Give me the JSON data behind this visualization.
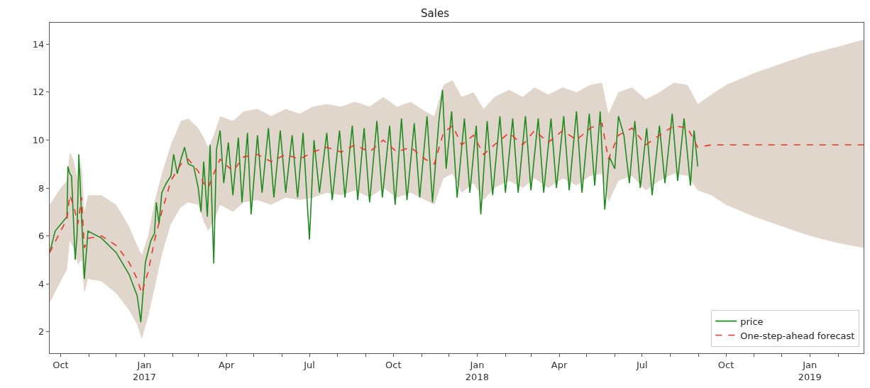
{
  "chart_data": {
    "type": "line",
    "title": "Sales",
    "xlim": [
      "2016-09-19",
      "2019-03-01"
    ],
    "ylim": [
      1.1,
      14.9
    ],
    "yticks": [
      2,
      4,
      6,
      8,
      10,
      12,
      14
    ],
    "xticks": [
      {
        "value": "2016-10-01",
        "label": "Oct"
      },
      {
        "value": "2016-11-01",
        "label": null
      },
      {
        "value": "2016-12-01",
        "label": null
      },
      {
        "value": "2017-01-01",
        "label": "Jan\n2017"
      },
      {
        "value": "2017-02-01",
        "label": null
      },
      {
        "value": "2017-03-01",
        "label": null
      },
      {
        "value": "2017-04-01",
        "label": "Apr"
      },
      {
        "value": "2017-05-01",
        "label": null
      },
      {
        "value": "2017-06-01",
        "label": null
      },
      {
        "value": "2017-07-01",
        "label": "Jul"
      },
      {
        "value": "2017-08-01",
        "label": null
      },
      {
        "value": "2017-09-01",
        "label": null
      },
      {
        "value": "2017-10-01",
        "label": "Oct"
      },
      {
        "value": "2017-11-01",
        "label": null
      },
      {
        "value": "2017-12-01",
        "label": null
      },
      {
        "value": "2018-01-01",
        "label": "Jan\n2018"
      },
      {
        "value": "2018-02-01",
        "label": null
      },
      {
        "value": "2018-03-01",
        "label": null
      },
      {
        "value": "2018-04-01",
        "label": "Apr"
      },
      {
        "value": "2018-05-01",
        "label": null
      },
      {
        "value": "2018-06-01",
        "label": null
      },
      {
        "value": "2018-07-01",
        "label": "Jul"
      },
      {
        "value": "2018-08-01",
        "label": null
      },
      {
        "value": "2018-09-01",
        "label": null
      },
      {
        "value": "2018-10-01",
        "label": "Oct"
      },
      {
        "value": "2018-11-01",
        "label": null
      },
      {
        "value": "2018-12-01",
        "label": null
      },
      {
        "value": "2019-01-01",
        "label": "Jan\n2019"
      },
      {
        "value": "2019-02-01",
        "label": null
      }
    ],
    "legend": "bottom right",
    "marker": "none",
    "series": [
      {
        "name": "price",
        "color": "#1f8a1f",
        "line_style": "solid",
        "x": [
          "2016-09-19",
          "2016-09-25",
          "2016-10-08",
          "2016-10-09",
          "2016-10-11",
          "2016-10-13",
          "2016-10-17",
          "2016-10-19",
          "2016-10-21",
          "2016-10-27",
          "2016-10-31",
          "2016-11-15",
          "2016-12-01",
          "2016-12-15",
          "2016-12-24",
          "2016-12-28",
          "2017-01-02",
          "2017-01-08",
          "2017-01-12",
          "2017-01-14",
          "2017-01-17",
          "2017-01-20",
          "2017-01-25",
          "2017-01-30",
          "2017-02-02",
          "2017-02-06",
          "2017-02-10",
          "2017-02-14",
          "2017-02-18",
          "2017-02-24",
          "2017-03-01",
          "2017-03-04",
          "2017-03-07",
          "2017-03-11",
          "2017-03-14",
          "2017-03-18",
          "2017-03-21",
          "2017-03-25",
          "2017-03-29",
          "2017-04-03",
          "2017-04-08",
          "2017-04-14",
          "2017-04-18",
          "2017-04-24",
          "2017-04-28",
          "2017-05-05",
          "2017-05-10",
          "2017-05-17",
          "2017-05-23",
          "2017-05-30",
          "2017-06-05",
          "2017-06-12",
          "2017-06-18",
          "2017-06-24",
          "2017-07-01",
          "2017-07-06",
          "2017-07-12",
          "2017-07-20",
          "2017-07-26",
          "2017-08-03",
          "2017-08-09",
          "2017-08-17",
          "2017-08-23",
          "2017-08-30",
          "2017-09-05",
          "2017-09-13",
          "2017-09-19",
          "2017-09-27",
          "2017-10-03",
          "2017-10-10",
          "2017-10-16",
          "2017-10-24",
          "2017-10-30",
          "2017-11-07",
          "2017-11-13",
          "2017-11-20",
          "2017-11-24",
          "2017-11-28",
          "2017-12-04",
          "2017-12-10",
          "2017-12-18",
          "2017-12-24",
          "2017-12-31",
          "2018-01-05",
          "2018-01-12",
          "2018-01-18",
          "2018-01-26",
          "2018-02-01",
          "2018-02-09",
          "2018-02-15",
          "2018-02-23",
          "2018-03-01",
          "2018-03-09",
          "2018-03-15",
          "2018-03-23",
          "2018-03-29",
          "2018-04-06",
          "2018-04-12",
          "2018-04-20",
          "2018-04-26",
          "2018-05-04",
          "2018-05-10",
          "2018-05-16",
          "2018-05-21",
          "2018-05-26",
          "2018-06-01",
          "2018-06-05",
          "2018-06-11",
          "2018-06-17",
          "2018-06-23",
          "2018-06-29",
          "2018-07-06",
          "2018-07-12",
          "2018-07-20",
          "2018-07-26",
          "2018-08-03",
          "2018-08-09",
          "2018-08-16",
          "2018-08-23",
          "2018-08-27",
          "2018-08-31"
        ],
        "values": [
          5.3,
          6.2,
          6.8,
          8.9,
          8.6,
          8.5,
          5.0,
          6.0,
          9.4,
          4.2,
          6.2,
          5.9,
          5.3,
          4.4,
          3.5,
          2.4,
          4.9,
          5.8,
          6.1,
          7.4,
          6.5,
          7.8,
          8.2,
          8.5,
          9.4,
          8.6,
          9.2,
          9.7,
          9.0,
          8.9,
          8.0,
          7.0,
          9.1,
          6.8,
          9.8,
          4.85,
          9.6,
          10.4,
          8.2,
          9.9,
          7.7,
          10.1,
          7.4,
          10.3,
          6.9,
          10.2,
          7.8,
          10.5,
          7.6,
          10.4,
          7.8,
          10.2,
          7.6,
          10.3,
          5.85,
          10.0,
          7.8,
          10.3,
          7.5,
          10.4,
          7.6,
          10.6,
          7.5,
          10.5,
          7.4,
          10.8,
          7.6,
          10.6,
          7.3,
          10.9,
          7.5,
          10.7,
          7.6,
          11.0,
          7.4,
          10.8,
          12.1,
          8.8,
          11.2,
          7.6,
          10.9,
          7.8,
          10.6,
          6.9,
          10.8,
          7.7,
          11.0,
          7.8,
          10.9,
          7.8,
          11.0,
          7.9,
          10.9,
          7.8,
          10.9,
          8.0,
          11.0,
          7.9,
          11.2,
          7.8,
          11.1,
          8.1,
          11.2,
          7.1,
          9.3,
          8.8,
          11.0,
          10.2,
          8.2,
          10.8,
          8.0,
          10.5,
          7.7,
          10.6,
          8.2,
          11.1,
          8.3,
          10.9,
          8.1,
          10.4,
          8.9
        ]
      },
      {
        "name": "One-step-ahead forecast",
        "color": "#e8352b",
        "line_style": "dashed",
        "x": [
          "2016-09-19",
          "2016-10-01",
          "2016-10-08",
          "2016-10-11",
          "2016-10-15",
          "2016-10-20",
          "2016-10-24",
          "2016-10-27",
          "2016-10-31",
          "2016-11-15",
          "2016-12-01",
          "2016-12-15",
          "2016-12-24",
          "2016-12-29",
          "2017-01-05",
          "2017-01-12",
          "2017-01-20",
          "2017-01-30",
          "2017-02-10",
          "2017-02-18",
          "2017-03-01",
          "2017-03-07",
          "2017-03-12",
          "2017-03-18",
          "2017-03-25",
          "2017-04-08",
          "2017-04-20",
          "2017-05-05",
          "2017-05-20",
          "2017-06-05",
          "2017-06-20",
          "2017-07-05",
          "2017-07-20",
          "2017-08-05",
          "2017-08-20",
          "2017-09-05",
          "2017-09-20",
          "2017-10-05",
          "2017-10-20",
          "2017-11-05",
          "2017-11-15",
          "2017-11-25",
          "2017-12-05",
          "2017-12-15",
          "2017-12-28",
          "2018-01-08",
          "2018-01-20",
          "2018-02-05",
          "2018-02-20",
          "2018-03-05",
          "2018-03-20",
          "2018-04-05",
          "2018-04-20",
          "2018-05-05",
          "2018-05-18",
          "2018-05-25",
          "2018-06-05",
          "2018-06-20",
          "2018-07-05",
          "2018-07-20",
          "2018-08-05",
          "2018-08-20",
          "2018-08-31",
          "2018-09-15",
          "2018-10-01",
          "2018-11-01",
          "2018-12-01",
          "2019-01-01",
          "2019-02-01",
          "2019-03-01"
        ],
        "values": [
          5.3,
          6.2,
          6.7,
          7.7,
          7.3,
          6.5,
          7.6,
          5.5,
          5.9,
          6.0,
          5.6,
          4.9,
          4.2,
          3.6,
          4.5,
          5.8,
          7.0,
          8.3,
          9.0,
          9.2,
          8.7,
          8.2,
          8.0,
          8.6,
          9.2,
          8.7,
          9.3,
          9.4,
          9.1,
          9.4,
          9.2,
          9.5,
          9.7,
          9.5,
          9.8,
          9.5,
          10.0,
          9.5,
          9.7,
          9.2,
          9.0,
          10.3,
          10.6,
          9.8,
          10.2,
          9.4,
          9.8,
          10.3,
          9.8,
          10.4,
          9.9,
          10.4,
          10.0,
          10.5,
          10.7,
          9.2,
          10.2,
          10.5,
          9.8,
          10.2,
          10.6,
          10.5,
          9.7,
          9.8,
          9.8,
          9.8,
          9.8,
          9.8,
          9.8,
          9.8
        ],
        "lower": [
          3.2,
          4.1,
          4.6,
          5.8,
          5.5,
          4.8,
          5.0,
          3.6,
          4.2,
          4.1,
          3.6,
          2.9,
          2.3,
          1.7,
          2.6,
          3.8,
          5.2,
          6.5,
          7.2,
          7.4,
          7.3,
          6.6,
          6.2,
          6.6,
          7.3,
          7.0,
          7.4,
          7.5,
          7.3,
          7.6,
          7.5,
          7.6,
          7.8,
          7.7,
          7.9,
          7.6,
          8.0,
          7.6,
          7.8,
          7.5,
          7.3,
          8.4,
          8.6,
          7.8,
          8.2,
          7.5,
          8.0,
          8.3,
          8.0,
          8.4,
          8.0,
          8.4,
          8.1,
          8.5,
          8.6,
          7.4,
          8.3,
          8.5,
          7.9,
          8.3,
          8.6,
          8.5,
          7.9,
          7.7,
          7.3,
          6.8,
          6.4,
          6.0,
          5.7,
          5.5
        ],
        "upper": [
          7.3,
          8.0,
          8.3,
          9.5,
          9.2,
          8.3,
          9.0,
          7.0,
          7.7,
          7.7,
          7.3,
          6.4,
          5.6,
          5.2,
          6.0,
          7.4,
          8.6,
          9.8,
          10.8,
          10.9,
          10.5,
          10.1,
          9.7,
          10.2,
          11.0,
          10.8,
          11.2,
          11.3,
          11.0,
          11.3,
          11.1,
          11.4,
          11.5,
          11.4,
          11.6,
          11.4,
          11.8,
          11.4,
          11.6,
          11.2,
          11.0,
          12.3,
          12.5,
          11.8,
          12.0,
          11.3,
          11.8,
          12.1,
          11.8,
          12.2,
          11.9,
          12.2,
          12.0,
          12.3,
          12.4,
          11.1,
          12.0,
          12.2,
          11.7,
          12.0,
          12.4,
          12.3,
          11.5,
          11.9,
          12.3,
          12.8,
          13.2,
          13.6,
          13.9,
          14.2
        ]
      }
    ]
  }
}
